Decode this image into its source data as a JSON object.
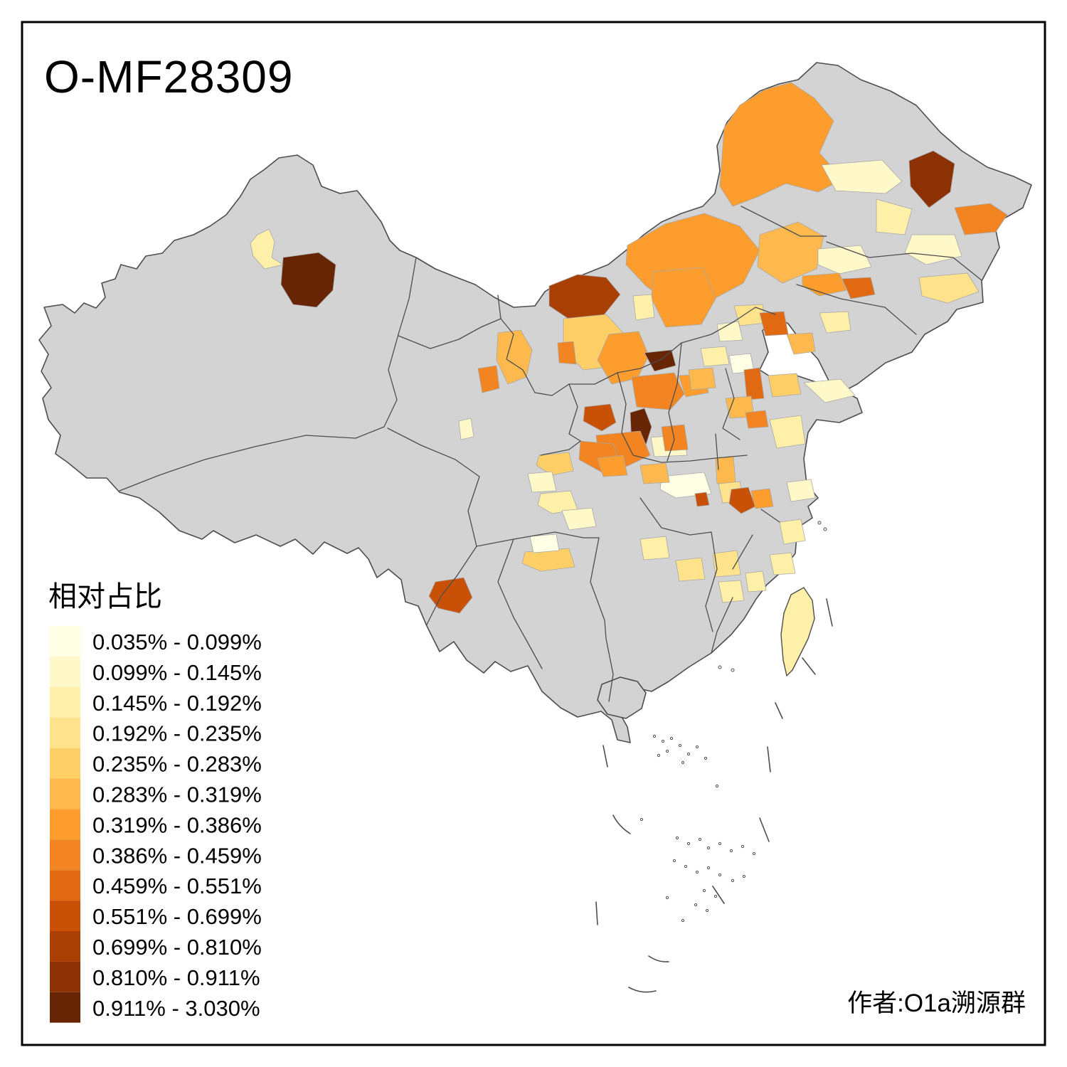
{
  "title": "O-MF28309",
  "attribution": "作者:O1a溯源群",
  "legend": {
    "title": "相对占比",
    "classes": [
      {
        "label": "0.035% - 0.099%",
        "color": "#FFFFE5"
      },
      {
        "label": "0.099% - 0.145%",
        "color": "#FFF8C9"
      },
      {
        "label": "0.145% - 0.192%",
        "color": "#FEF0A9"
      },
      {
        "label": "0.192% - 0.235%",
        "color": "#FEE28C"
      },
      {
        "label": "0.235% - 0.283%",
        "color": "#FECF66"
      },
      {
        "label": "0.283% - 0.319%",
        "color": "#FDB94D"
      },
      {
        "label": "0.319% - 0.386%",
        "color": "#FD9D2D"
      },
      {
        "label": "0.386% - 0.459%",
        "color": "#F28521"
      },
      {
        "label": "0.459% - 0.551%",
        "color": "#E06912"
      },
      {
        "label": "0.551% - 0.699%",
        "color": "#C85107"
      },
      {
        "label": "0.699% - 0.810%",
        "color": "#AA3F03"
      },
      {
        "label": "0.810% - 0.911%",
        "color": "#8B3104"
      },
      {
        "label": "0.911% - 3.030%",
        "color": "#682506"
      }
    ]
  },
  "map": {
    "type": "choropleth",
    "region_scope": "China prefectures",
    "no_data_color": "#D3D3D3",
    "border_color": "#4D4D4D",
    "sea_color": "#FFFFFF"
  }
}
